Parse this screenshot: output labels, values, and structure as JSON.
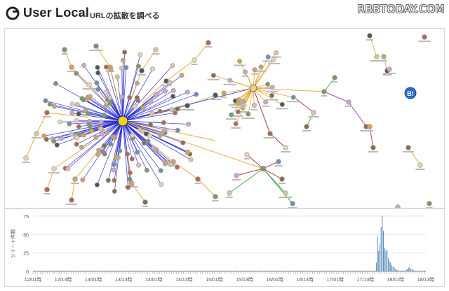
{
  "header": {
    "logo_text": "User Local",
    "page_title": "URLの拡散を調べる",
    "watermark": "RBBTODAY.COM"
  },
  "graph": {
    "badge_text": "B!",
    "colors": {
      "hub_edge": "#2b2bd0",
      "retweet_edge": "#e0a020",
      "reply_edge": "#a01c2c",
      "mention_edge": "#2aa02a",
      "purple_edge": "#8a2aa0",
      "node_stroke": "#999999",
      "badge": "#2a6cd0"
    }
  },
  "chart_data": {
    "type": "bar",
    "ylabel": "ツイート件数",
    "ylim": [
      0,
      75
    ],
    "yticks": [
      0,
      25,
      50,
      75
    ],
    "xticks": [
      "12/01時",
      "12/13時",
      "13/01時",
      "13/13時",
      "14/01時",
      "14/13時",
      "15/01時",
      "15/13時",
      "16/01時",
      "16/13時",
      "17/01時",
      "17/13時",
      "18/01時",
      "18/13時"
    ],
    "series": [
      {
        "values": [
          1,
          1,
          1,
          1,
          1,
          1,
          1,
          1,
          1,
          1,
          1,
          1,
          1,
          1,
          1,
          1,
          1,
          1,
          1,
          1,
          1,
          1,
          1,
          1,
          1,
          1,
          1,
          1,
          1,
          1,
          1,
          1,
          1,
          1,
          1,
          1,
          1,
          1,
          1,
          1,
          1,
          1,
          1,
          1,
          1,
          1,
          1,
          1,
          1,
          1,
          1,
          1,
          1,
          1,
          1,
          1,
          1,
          1,
          1,
          1,
          1,
          1,
          1,
          1,
          1,
          1,
          1,
          1,
          1,
          1,
          1,
          1,
          1,
          1,
          1,
          1,
          1,
          1,
          1,
          1,
          1,
          1,
          1,
          1,
          1,
          1,
          1,
          1,
          1,
          1,
          1,
          1,
          1,
          1,
          1,
          1,
          1,
          1,
          1,
          1,
          1,
          1,
          1,
          1,
          1,
          1,
          1,
          1,
          1,
          1,
          1,
          1,
          1,
          1,
          1,
          1,
          1,
          1,
          1,
          1,
          1,
          1,
          1,
          1,
          1,
          1,
          1,
          1,
          1,
          1,
          1,
          1,
          1,
          1,
          1,
          1,
          1,
          1,
          1,
          1,
          1,
          1,
          1,
          1,
          1,
          1,
          1,
          1,
          1,
          1,
          1,
          1,
          1,
          1,
          1,
          1,
          1,
          1,
          1,
          1,
          1,
          1,
          1,
          1,
          1,
          1,
          1,
          1,
          1,
          1,
          1,
          1,
          1,
          1,
          1,
          1,
          1,
          1,
          1,
          1,
          1,
          1,
          1,
          1,
          1,
          1,
          1,
          1,
          1,
          1,
          1,
          1,
          1,
          1,
          1,
          1,
          1,
          1,
          1,
          1,
          1,
          1,
          1,
          1,
          1,
          1,
          1,
          1,
          1,
          1,
          1,
          1,
          1,
          1,
          1,
          1,
          1,
          1,
          1,
          1,
          1,
          1,
          1,
          1,
          1,
          1,
          1,
          1,
          1,
          1,
          1,
          1,
          1,
          1,
          1,
          1,
          1,
          1,
          1,
          1,
          1,
          1,
          1,
          1,
          1,
          1,
          1,
          1,
          1,
          1,
          1,
          1,
          1,
          1,
          1,
          1,
          1,
          1,
          1,
          1,
          1,
          1,
          1,
          1,
          1,
          1,
          1,
          1,
          1,
          1,
          1,
          1,
          1,
          1,
          1,
          1,
          1,
          1,
          1,
          1,
          1,
          1,
          1,
          1,
          1,
          1,
          1,
          12,
          48,
          28,
          38,
          60,
          75,
          55,
          32,
          28,
          30,
          18,
          14,
          12,
          8,
          6,
          6,
          3,
          2,
          2,
          1,
          1,
          1,
          1,
          1,
          1,
          2,
          3,
          5,
          6,
          4,
          3,
          2,
          1,
          1,
          1,
          1,
          1,
          1,
          1,
          1,
          1,
          1
        ]
      }
    ],
    "bar_color": "#4682b4",
    "grid": true
  }
}
